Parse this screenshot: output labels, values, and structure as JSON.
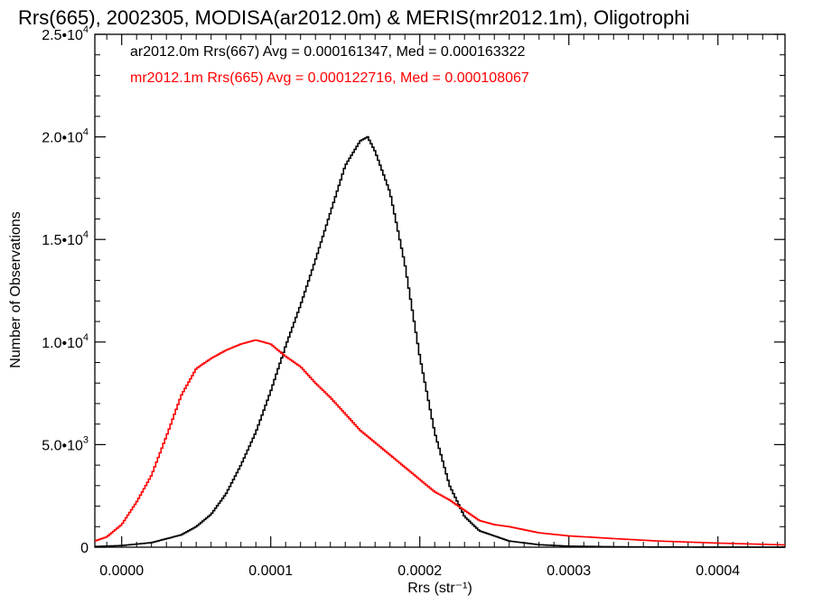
{
  "chart_data": {
    "type": "line",
    "title": "Rrs(665), 2002305, MODISA(ar2012.0m) & MERIS(mr2012.1m), Oligotrophi",
    "xlabel": "Rrs (str⁻¹)",
    "ylabel": "Number of Observations",
    "xlim": [
      -1.8e-05,
      0.000445
    ],
    "ylim": [
      0,
      25000
    ],
    "x_ticks": [
      {
        "value": 0.0,
        "label": "0.0000"
      },
      {
        "value": 0.0001,
        "label": "0.0001"
      },
      {
        "value": 0.0002,
        "label": "0.0002"
      },
      {
        "value": 0.0003,
        "label": "0.0003"
      },
      {
        "value": 0.0004,
        "label": "0.0004"
      }
    ],
    "y_ticks": [
      {
        "value": 0,
        "mantissa": "0",
        "exp": ""
      },
      {
        "value": 5000,
        "mantissa": "5.0•10",
        "exp": "3"
      },
      {
        "value": 10000,
        "mantissa": "1.0•10",
        "exp": "4"
      },
      {
        "value": 15000,
        "mantissa": "1.5•10",
        "exp": "4"
      },
      {
        "value": 20000,
        "mantissa": "2.0•10",
        "exp": "4"
      },
      {
        "value": 25000,
        "mantissa": "2.5•10",
        "exp": "4"
      }
    ],
    "step": "histogram",
    "grid": false,
    "legend_position": "top-left",
    "series": [
      {
        "name": "ar2012.0m Rrs(667) Avg = 0.000161347, Med = 0.000163322",
        "color": "#000000",
        "points": [
          [
            -1.8e-05,
            30
          ],
          [
            0.0,
            80
          ],
          [
            2e-05,
            220
          ],
          [
            4e-05,
            600
          ],
          [
            5e-05,
            1000
          ],
          [
            6e-05,
            1600
          ],
          [
            7e-05,
            2600
          ],
          [
            8e-05,
            4000
          ],
          [
            9e-05,
            5600
          ],
          [
            0.0001,
            7600
          ],
          [
            0.00011,
            9800
          ],
          [
            0.00012,
            11800
          ],
          [
            0.00013,
            14000
          ],
          [
            0.00014,
            16300
          ],
          [
            0.00015,
            18600
          ],
          [
            0.00016,
            19800
          ],
          [
            0.000165,
            20000
          ],
          [
            0.00017,
            19300
          ],
          [
            0.00018,
            17300
          ],
          [
            0.00019,
            13800
          ],
          [
            0.0002,
            9300
          ],
          [
            0.00021,
            5600
          ],
          [
            0.00022,
            3000
          ],
          [
            0.00023,
            1500
          ],
          [
            0.00024,
            800
          ],
          [
            0.00026,
            300
          ],
          [
            0.00028,
            120
          ],
          [
            0.0003,
            50
          ],
          [
            0.00033,
            20
          ],
          [
            0.00036,
            8
          ],
          [
            0.0004,
            3
          ],
          [
            0.000445,
            1
          ]
        ]
      },
      {
        "name": "mr2012.1m Rrs(665) Avg = 0.000122716, Med = 0.000108067",
        "color": "#ff0000",
        "points": [
          [
            -1.8e-05,
            300
          ],
          [
            -1e-05,
            500
          ],
          [
            0.0,
            1100
          ],
          [
            1e-05,
            2200
          ],
          [
            2e-05,
            3500
          ],
          [
            3e-05,
            5400
          ],
          [
            4e-05,
            7400
          ],
          [
            5e-05,
            8700
          ],
          [
            6e-05,
            9200
          ],
          [
            7e-05,
            9600
          ],
          [
            8e-05,
            9900
          ],
          [
            9e-05,
            10100
          ],
          [
            0.0001,
            9900
          ],
          [
            0.00011,
            9300
          ],
          [
            0.00012,
            8800
          ],
          [
            0.00013,
            8000
          ],
          [
            0.00014,
            7300
          ],
          [
            0.00015,
            6500
          ],
          [
            0.00016,
            5700
          ],
          [
            0.00017,
            5100
          ],
          [
            0.00018,
            4500
          ],
          [
            0.00019,
            3900
          ],
          [
            0.0002,
            3300
          ],
          [
            0.00021,
            2700
          ],
          [
            0.00022,
            2300
          ],
          [
            0.00023,
            1800
          ],
          [
            0.00024,
            1300
          ],
          [
            0.00025,
            1100
          ],
          [
            0.00026,
            1000
          ],
          [
            0.00028,
            700
          ],
          [
            0.0003,
            550
          ],
          [
            0.00033,
            420
          ],
          [
            0.00036,
            300
          ],
          [
            0.0004,
            200
          ],
          [
            0.000445,
            110
          ]
        ]
      }
    ]
  }
}
